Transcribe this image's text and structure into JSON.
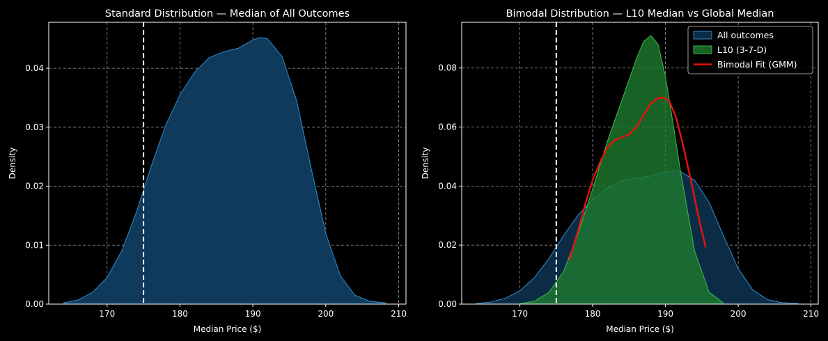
{
  "chart_data": [
    {
      "type": "area",
      "title": "Standard Distribution — Median of All Outcomes",
      "xlabel": "Median Price ($)",
      "ylabel": "Density",
      "xlim": [
        162,
        211
      ],
      "ylim": [
        0,
        0.0478
      ],
      "xticks": [
        170,
        180,
        190,
        200,
        210
      ],
      "yticks": [
        0.0,
        0.01,
        0.02,
        0.03,
        0.04
      ],
      "ytick_labels": [
        "0.00",
        "0.01",
        "0.02",
        "0.03",
        "0.04"
      ],
      "grid": true,
      "vline": 175,
      "series": [
        {
          "name": "All outcomes",
          "style": "fill",
          "fill": "#0f3a5c",
          "stroke": "#2e86c1",
          "x": [
            164,
            166,
            168,
            170,
            172,
            174,
            176,
            178,
            180,
            182,
            184,
            186,
            188,
            190,
            191,
            192,
            194,
            196,
            198,
            200,
            202,
            204,
            206,
            208.3
          ],
          "y": [
            0.0002,
            0.0007,
            0.002,
            0.0045,
            0.009,
            0.0155,
            0.0232,
            0.0302,
            0.0355,
            0.0393,
            0.0418,
            0.0428,
            0.0434,
            0.0448,
            0.0452,
            0.045,
            0.042,
            0.0345,
            0.023,
            0.012,
            0.0048,
            0.0015,
            0.0005,
            0.0002
          ]
        }
      ]
    },
    {
      "type": "area",
      "title": "Bimodal Distribution — L10 Median vs Global Median",
      "xlabel": "Median Price ($)",
      "ylabel": "Density",
      "xlim": [
        162,
        211
      ],
      "ylim": [
        0,
        0.0955
      ],
      "xticks": [
        170,
        180,
        190,
        200,
        210
      ],
      "yticks": [
        0.0,
        0.02,
        0.04,
        0.06,
        0.08
      ],
      "ytick_labels": [
        "0.00",
        "0.02",
        "0.04",
        "0.06",
        "0.08"
      ],
      "grid": true,
      "vline": 175,
      "legend_position": "top-right",
      "series": [
        {
          "name": "All outcomes",
          "style": "fill",
          "fill": "#0c2c46",
          "stroke": "#2e86c1",
          "x": [
            164,
            166,
            168,
            170,
            172,
            174,
            176,
            178,
            180,
            182,
            184,
            186,
            188,
            190,
            191,
            192,
            194,
            196,
            198,
            200,
            202,
            204,
            206,
            208.3
          ],
          "y": [
            0.0002,
            0.0007,
            0.002,
            0.0045,
            0.009,
            0.0155,
            0.0232,
            0.0302,
            0.0355,
            0.0393,
            0.0418,
            0.0428,
            0.0434,
            0.0448,
            0.0452,
            0.045,
            0.042,
            0.0345,
            0.023,
            0.012,
            0.0048,
            0.0015,
            0.0005,
            0.0002
          ]
        },
        {
          "name": "L10 (3-7-D)",
          "style": "fill",
          "fill": "#1e7d2e",
          "fill_opacity": 0.78,
          "stroke": "#3bb54a",
          "x": [
            170,
            172,
            174,
            176,
            178,
            180,
            182,
            184,
            186,
            187,
            188,
            189,
            190,
            191,
            192,
            194,
            196,
            198
          ],
          "y": [
            0.0001,
            0.001,
            0.004,
            0.011,
            0.024,
            0.039,
            0.055,
            0.069,
            0.083,
            0.089,
            0.091,
            0.088,
            0.077,
            0.062,
            0.046,
            0.018,
            0.004,
            0.0003
          ]
        },
        {
          "name": "Bimodal Fit (GMM)",
          "style": "line",
          "stroke": "#e8120c",
          "x": [
            176.8,
            178,
            179,
            180,
            181,
            182,
            183,
            184,
            185,
            186,
            187,
            188,
            189,
            189.8,
            190.5,
            191.5,
            192.5,
            193.5,
            194.5,
            195.5
          ],
          "y": [
            0.015,
            0.025,
            0.034,
            0.042,
            0.048,
            0.053,
            0.0555,
            0.0565,
            0.0575,
            0.06,
            0.064,
            0.068,
            0.0698,
            0.07,
            0.069,
            0.063,
            0.053,
            0.042,
            0.03,
            0.0195
          ]
        }
      ]
    }
  ]
}
